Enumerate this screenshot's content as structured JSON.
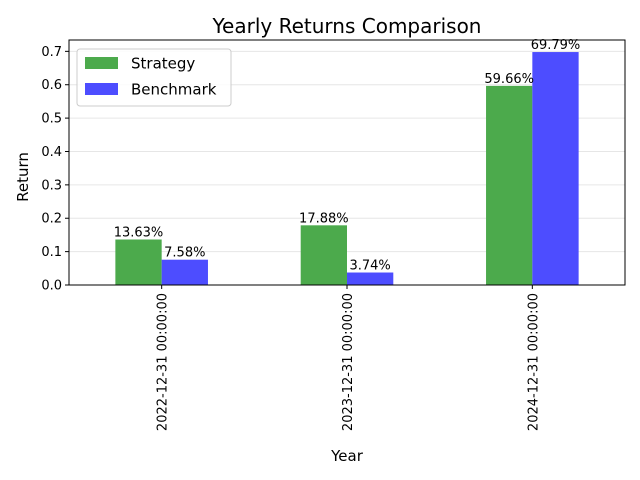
{
  "chart_data": {
    "type": "bar",
    "title": "Yearly Returns Comparison",
    "xlabel": "Year",
    "ylabel": "Return",
    "categories": [
      "2022-12-31 00:00:00",
      "2023-12-31 00:00:00",
      "2024-12-31 00:00:00"
    ],
    "series": [
      {
        "name": "Strategy",
        "color": "#4caa4c",
        "values": [
          0.1363,
          0.1788,
          0.5966
        ],
        "labels": [
          "13.63%",
          "17.88%",
          "59.66%"
        ]
      },
      {
        "name": "Benchmark",
        "color": "#4d4dff",
        "values": [
          0.0758,
          0.0374,
          0.6979
        ],
        "labels": [
          "7.58%",
          "3.74%",
          "69.79%"
        ]
      }
    ],
    "ylim": [
      0,
      0.734
    ],
    "yticks": [
      0.0,
      0.1,
      0.2,
      0.3,
      0.4,
      0.5,
      0.6,
      0.7
    ],
    "ytick_labels": [
      "0.0",
      "0.1",
      "0.2",
      "0.3",
      "0.4",
      "0.5",
      "0.6",
      "0.7"
    ],
    "grid": "horizontal",
    "legend_position": "top-left"
  }
}
